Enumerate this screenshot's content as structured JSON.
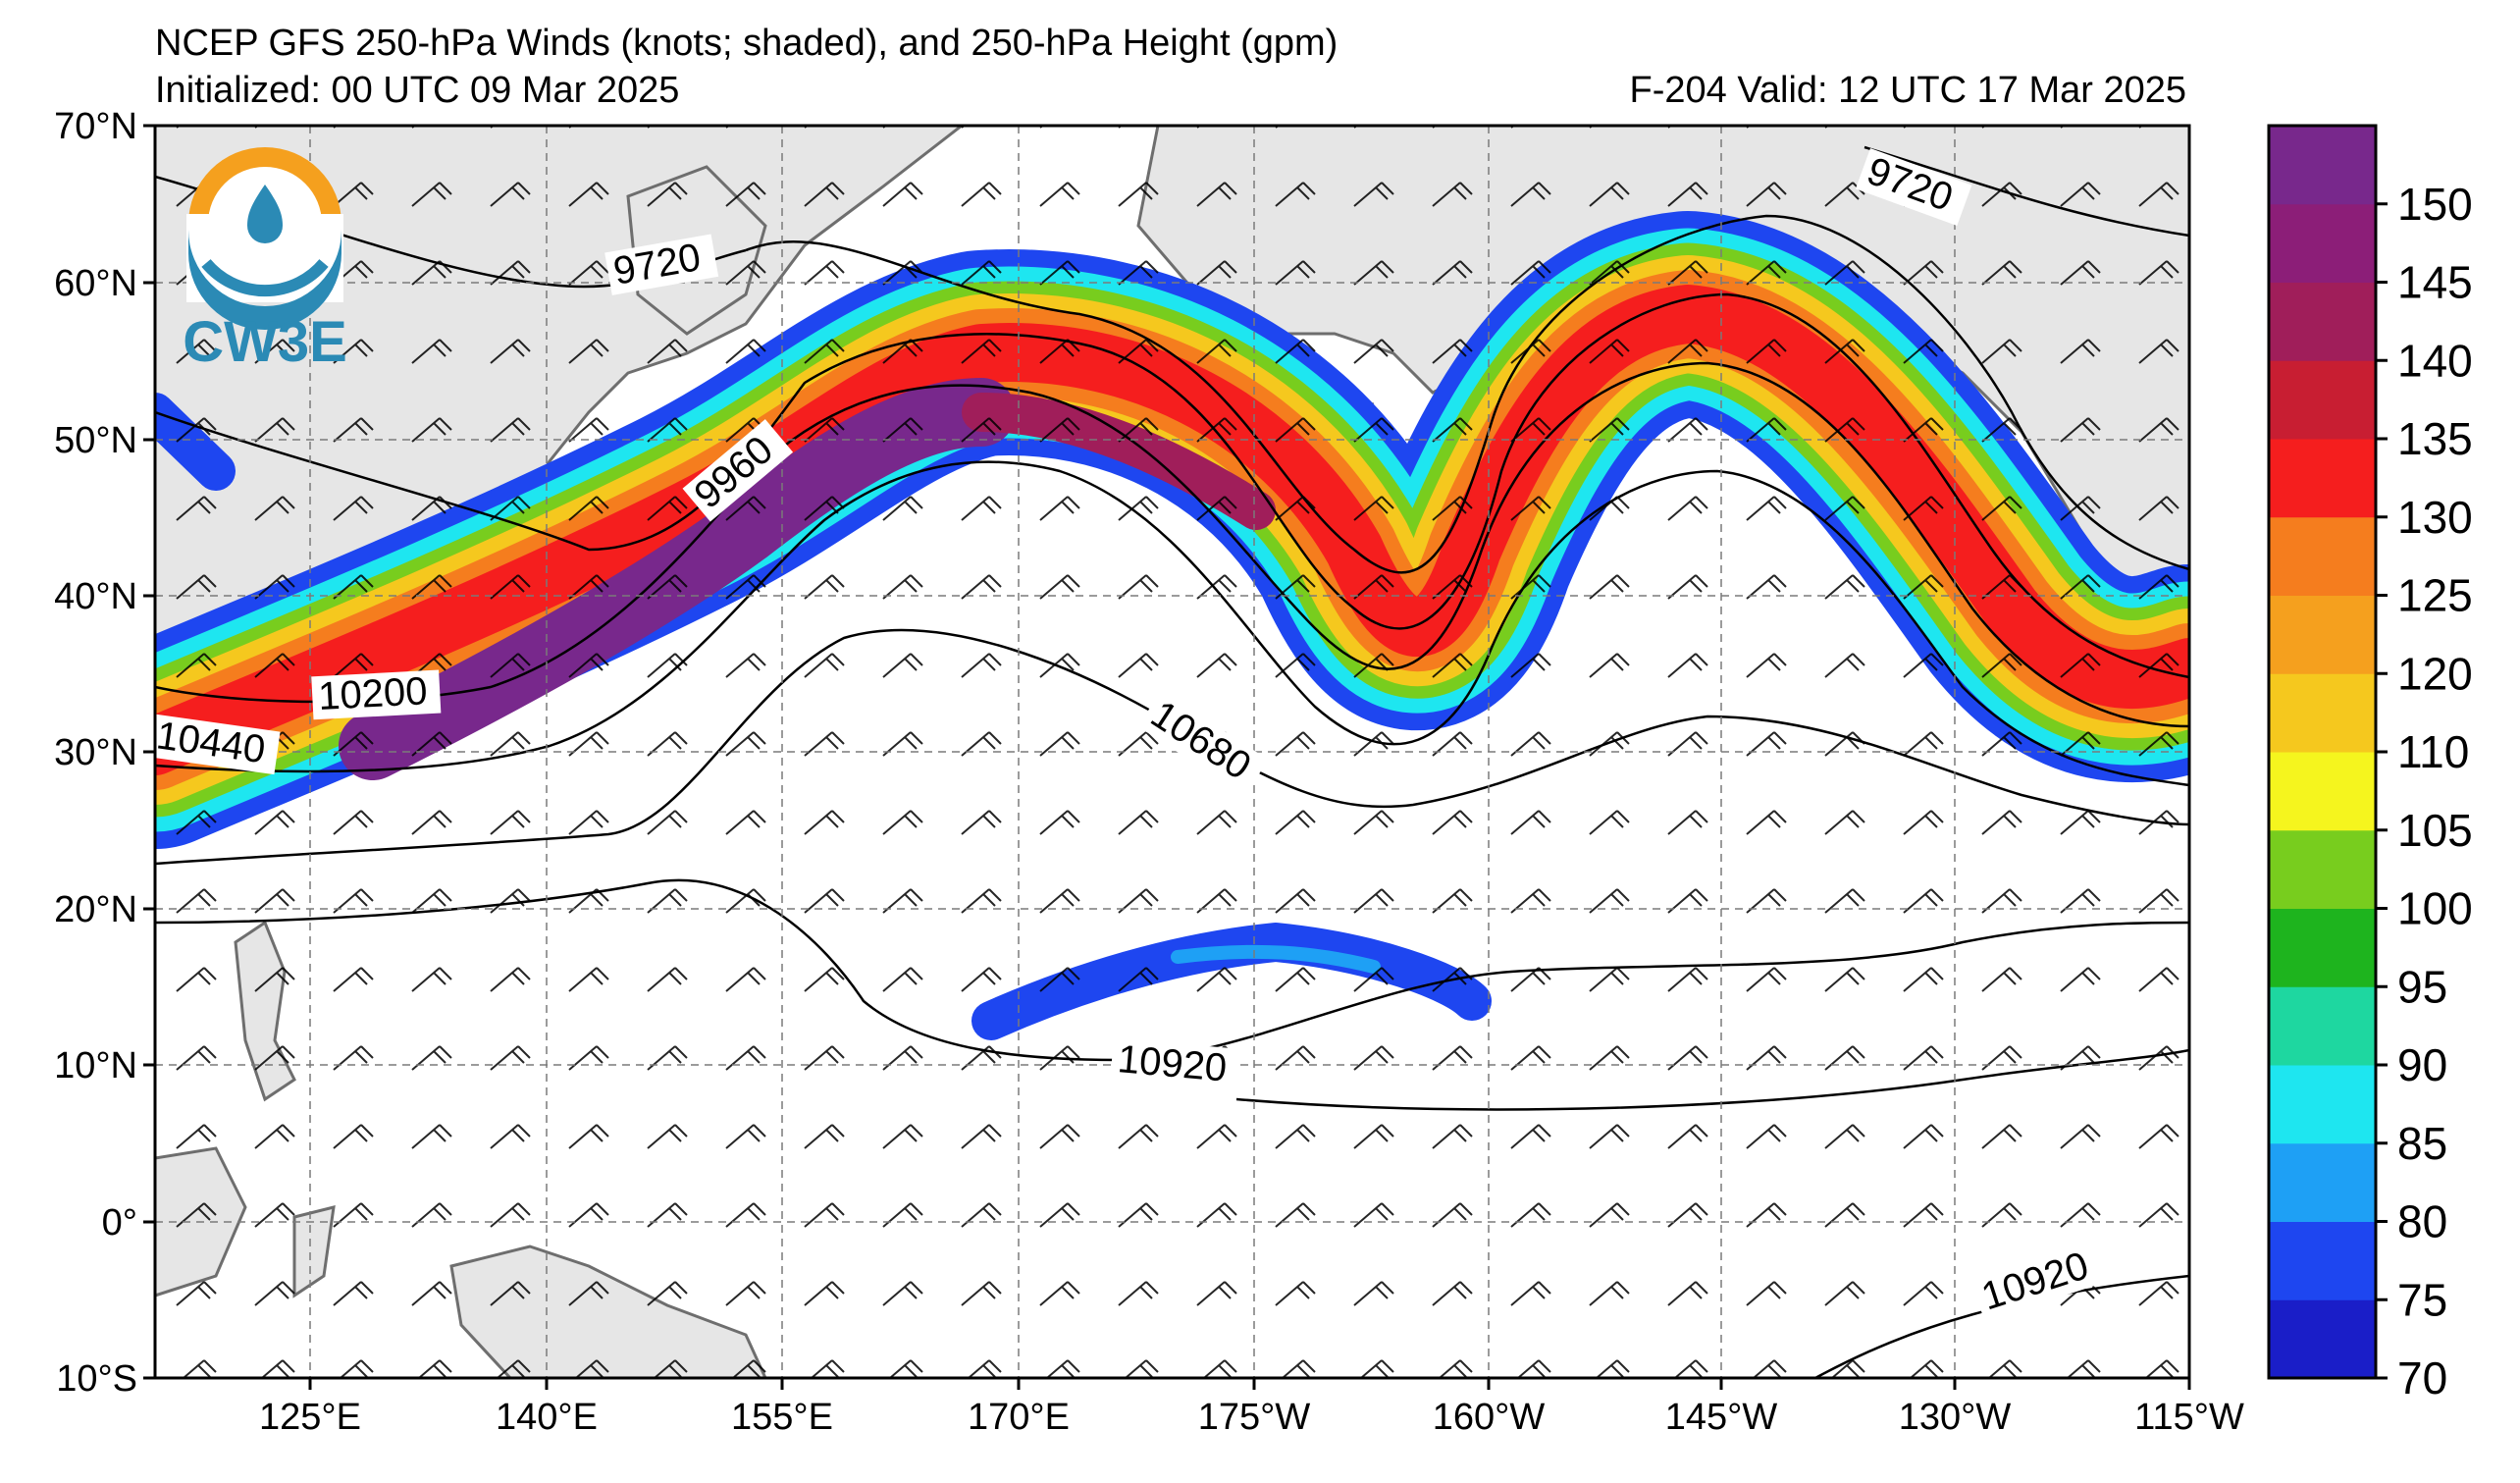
{
  "header": {
    "title": "NCEP GFS 250-hPa Winds (knots; shaded), and 250-hPa Height (gpm)",
    "initialized": "Initialized: 00 UTC 09 Mar 2025",
    "valid": "F-204  Valid: 12 UTC 17 Mar 2025"
  },
  "logo": {
    "text": "CW3E"
  },
  "axes": {
    "lat_labels": [
      "70°N",
      "60°N",
      "50°N",
      "40°N",
      "30°N",
      "20°N",
      "10°N",
      "0°",
      "10°S"
    ],
    "lon_labels": [
      "125°E",
      "140°E",
      "155°E",
      "170°E",
      "175°W",
      "160°W",
      "145°W",
      "130°W",
      "115°W"
    ]
  },
  "contour_labels": [
    "9720",
    "9720",
    "9960",
    "10200",
    "10440",
    "10680",
    "10920",
    "10920"
  ],
  "colorbar": {
    "tick_labels": [
      "150",
      "145",
      "140",
      "135",
      "130",
      "125",
      "120",
      "110",
      "105",
      "100",
      "95",
      "90",
      "85",
      "80",
      "75",
      "70"
    ],
    "colors": [
      "#1a1ec8",
      "#1e46f0",
      "#1ea0f5",
      "#1ee6f0",
      "#1ed7a0",
      "#1eb41e",
      "#78cd1e",
      "#f5f51e",
      "#f5c81e",
      "#f5a01e",
      "#f57d1e",
      "#f51e1e",
      "#c81e32",
      "#a01e5a",
      "#8c1e78",
      "#78288c"
    ]
  },
  "colors": {
    "land": "#e6e6e6",
    "ocean": "#ffffff",
    "coast": "#6e6e6e",
    "jet_core": "#78288c"
  }
}
